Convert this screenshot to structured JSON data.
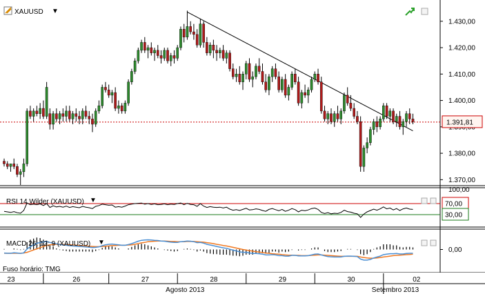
{
  "chart_data": {
    "type": "candlestick",
    "symbol": "XAUUSD",
    "dropdown_glyph": "▼",
    "colors": {
      "up": "#2e8b2e",
      "down": "#b01a1a",
      "wick": "#000000",
      "trendline": "#000000",
      "price_line": "#cc0000",
      "rsi_line": "#000000",
      "rsi_high": "#cc0000",
      "rsi_low": "#1a7a1a",
      "macd_fast": "#4a8fd4",
      "macd_slow": "#f07820",
      "grid": "#cfcfcf"
    },
    "price_axis": {
      "min": 1368,
      "max": 1437,
      "ticks": [
        1370,
        1380,
        1390,
        1400,
        1410,
        1420,
        1430
      ],
      "tick_labels": [
        "1.370,00",
        "1.380,00",
        "1.390,00",
        "1.400,00",
        "1.410,00",
        "1.420,00",
        "1.430,00"
      ]
    },
    "last_price": 1391.81,
    "last_price_label": "1.391,81",
    "trendline": {
      "from_index": 56,
      "from_value": 1433.5,
      "to_index": 125,
      "to_value": 1388.5
    },
    "candles": [
      [
        1377,
        1378,
        1375,
        1376
      ],
      [
        1376,
        1377,
        1374,
        1375
      ],
      [
        1375,
        1376,
        1373,
        1376
      ],
      [
        1376,
        1378,
        1374,
        1375
      ],
      [
        1375,
        1376,
        1371,
        1372
      ],
      [
        1372,
        1374,
        1368,
        1373
      ],
      [
        1373,
        1378,
        1371,
        1376
      ],
      [
        1376,
        1397,
        1375,
        1396
      ],
      [
        1396,
        1398,
        1393,
        1394
      ],
      [
        1394,
        1397,
        1392,
        1396
      ],
      [
        1396,
        1398,
        1394,
        1395
      ],
      [
        1395,
        1399,
        1393,
        1397
      ],
      [
        1397,
        1400,
        1393,
        1394
      ],
      [
        1394,
        1407,
        1393,
        1405
      ],
      [
        1395,
        1397,
        1389,
        1391
      ],
      [
        1391,
        1396,
        1389,
        1395
      ],
      [
        1395,
        1397,
        1392,
        1393
      ],
      [
        1393,
        1396,
        1391,
        1395
      ],
      [
        1395,
        1397,
        1392,
        1394
      ],
      [
        1394,
        1398,
        1392,
        1396
      ],
      [
        1396,
        1398,
        1392,
        1393
      ],
      [
        1393,
        1396,
        1391,
        1395
      ],
      [
        1395,
        1397,
        1392,
        1394
      ],
      [
        1394,
        1396,
        1391,
        1393
      ],
      [
        1393,
        1397,
        1391,
        1396
      ],
      [
        1396,
        1398,
        1393,
        1394
      ],
      [
        1394,
        1396,
        1391,
        1393
      ],
      [
        1393,
        1395,
        1388,
        1391
      ],
      [
        1391,
        1397,
        1390,
        1396
      ],
      [
        1396,
        1400,
        1395,
        1398
      ],
      [
        1398,
        1406,
        1397,
        1405
      ],
      [
        1405,
        1407,
        1403,
        1404
      ],
      [
        1404,
        1406,
        1401,
        1402
      ],
      [
        1402,
        1404,
        1399,
        1403
      ],
      [
        1403,
        1405,
        1396,
        1397
      ],
      [
        1397,
        1400,
        1395,
        1398
      ],
      [
        1398,
        1399,
        1395,
        1396
      ],
      [
        1396,
        1400,
        1395,
        1399
      ],
      [
        1399,
        1408,
        1398,
        1407
      ],
      [
        1407,
        1412,
        1406,
        1411
      ],
      [
        1411,
        1416,
        1410,
        1415
      ],
      [
        1415,
        1420,
        1414,
        1419
      ],
      [
        1419,
        1423,
        1418,
        1422
      ],
      [
        1422,
        1424,
        1418,
        1419
      ],
      [
        1419,
        1421,
        1416,
        1420
      ],
      [
        1420,
        1422,
        1417,
        1418
      ],
      [
        1418,
        1420,
        1415,
        1419
      ],
      [
        1419,
        1421,
        1416,
        1417
      ],
      [
        1417,
        1419,
        1414,
        1416
      ],
      [
        1416,
        1420,
        1415,
        1419
      ],
      [
        1419,
        1420,
        1414,
        1415
      ],
      [
        1415,
        1418,
        1413,
        1417
      ],
      [
        1417,
        1419,
        1414,
        1416
      ],
      [
        1416,
        1421,
        1415,
        1420
      ],
      [
        1420,
        1428,
        1419,
        1427
      ],
      [
        1427,
        1429,
        1422,
        1424
      ],
      [
        1424,
        1434,
        1423,
        1428
      ],
      [
        1428,
        1430,
        1425,
        1426
      ],
      [
        1426,
        1429,
        1423,
        1425
      ],
      [
        1425,
        1427,
        1420,
        1421
      ],
      [
        1421,
        1431,
        1420,
        1429
      ],
      [
        1429,
        1430,
        1420,
        1422
      ],
      [
        1422,
        1424,
        1417,
        1418
      ],
      [
        1418,
        1422,
        1417,
        1421
      ],
      [
        1421,
        1423,
        1416,
        1419
      ],
      [
        1419,
        1421,
        1415,
        1418
      ],
      [
        1418,
        1420,
        1416,
        1419
      ],
      [
        1419,
        1421,
        1415,
        1416
      ],
      [
        1416,
        1419,
        1414,
        1418
      ],
      [
        1418,
        1419,
        1411,
        1412
      ],
      [
        1412,
        1414,
        1408,
        1409
      ],
      [
        1409,
        1412,
        1407,
        1410
      ],
      [
        1410,
        1413,
        1406,
        1407
      ],
      [
        1407,
        1411,
        1404,
        1410
      ],
      [
        1410,
        1415,
        1408,
        1414
      ],
      [
        1414,
        1416,
        1407,
        1408
      ],
      [
        1408,
        1411,
        1405,
        1409
      ],
      [
        1409,
        1414,
        1408,
        1413
      ],
      [
        1413,
        1416,
        1410,
        1411
      ],
      [
        1411,
        1414,
        1406,
        1407
      ],
      [
        1407,
        1410,
        1403,
        1404
      ],
      [
        1404,
        1410,
        1402,
        1409
      ],
      [
        1409,
        1413,
        1407,
        1412
      ],
      [
        1412,
        1414,
        1408,
        1409
      ],
      [
        1409,
        1411,
        1403,
        1404
      ],
      [
        1404,
        1409,
        1403,
        1408
      ],
      [
        1408,
        1410,
        1401,
        1402
      ],
      [
        1402,
        1406,
        1400,
        1405
      ],
      [
        1405,
        1411,
        1404,
        1410
      ],
      [
        1410,
        1412,
        1406,
        1407
      ],
      [
        1407,
        1409,
        1398,
        1399
      ],
      [
        1399,
        1404,
        1397,
        1403
      ],
      [
        1403,
        1406,
        1401,
        1402
      ],
      [
        1402,
        1405,
        1399,
        1404
      ],
      [
        1404,
        1409,
        1403,
        1408
      ],
      [
        1408,
        1411,
        1407,
        1410
      ],
      [
        1410,
        1412,
        1406,
        1407
      ],
      [
        1407,
        1409,
        1395,
        1396
      ],
      [
        1396,
        1398,
        1392,
        1393
      ],
      [
        1393,
        1396,
        1391,
        1395
      ],
      [
        1395,
        1397,
        1391,
        1392
      ],
      [
        1392,
        1396,
        1390,
        1395
      ],
      [
        1395,
        1398,
        1392,
        1393
      ],
      [
        1393,
        1397,
        1391,
        1396
      ],
      [
        1396,
        1403,
        1395,
        1402
      ],
      [
        1402,
        1405,
        1398,
        1399
      ],
      [
        1399,
        1402,
        1396,
        1397
      ],
      [
        1397,
        1399,
        1393,
        1394
      ],
      [
        1394,
        1396,
        1391,
        1392
      ],
      [
        1392,
        1394,
        1373,
        1375
      ],
      [
        1375,
        1383,
        1373,
        1382
      ],
      [
        1382,
        1386,
        1380,
        1384
      ],
      [
        1384,
        1390,
        1383,
        1389
      ],
      [
        1389,
        1393,
        1387,
        1392
      ],
      [
        1392,
        1394,
        1388,
        1390
      ],
      [
        1390,
        1394,
        1389,
        1393
      ],
      [
        1393,
        1399,
        1392,
        1398
      ],
      [
        1398,
        1399,
        1393,
        1394
      ],
      [
        1394,
        1397,
        1392,
        1396
      ],
      [
        1396,
        1397,
        1391,
        1392
      ],
      [
        1392,
        1395,
        1390,
        1394
      ],
      [
        1394,
        1396,
        1389,
        1390
      ],
      [
        1390,
        1393,
        1387,
        1392
      ],
      [
        1392,
        1396,
        1390,
        1395
      ],
      [
        1395,
        1397,
        1391,
        1393
      ],
      [
        1393,
        1395,
        1391,
        1392
      ]
    ],
    "rsi": {
      "label": "RSI 14 Wilder (XAUUSD)",
      "ylim": [
        0,
        100
      ],
      "levels": [
        70,
        30
      ],
      "level_labels": [
        "70,00",
        "30,00"
      ],
      "axis_label": "100,00",
      "values": [
        42,
        40,
        38,
        41,
        37,
        35,
        45,
        72,
        66,
        68,
        66,
        69,
        63,
        70,
        56,
        62,
        58,
        60,
        57,
        61,
        56,
        59,
        57,
        55,
        60,
        57,
        55,
        52,
        60,
        63,
        68,
        66,
        64,
        65,
        57,
        59,
        57,
        61,
        66,
        68,
        70,
        71,
        72,
        68,
        70,
        67,
        69,
        66,
        67,
        69,
        66,
        68,
        67,
        70,
        72,
        66,
        71,
        67,
        66,
        60,
        70,
        61,
        56,
        59,
        57,
        56,
        57,
        54,
        57,
        50,
        46,
        48,
        45,
        49,
        53,
        47,
        48,
        51,
        49,
        45,
        42,
        49,
        52,
        48,
        44,
        49,
        42,
        46,
        52,
        48,
        40,
        46,
        44,
        47,
        52,
        54,
        49,
        38,
        34,
        37,
        33,
        35,
        34,
        38,
        46,
        41,
        39,
        35,
        33,
        20,
        32,
        40,
        45,
        50,
        46,
        51,
        58,
        51,
        54,
        47,
        52,
        45,
        51,
        54,
        50,
        49
      ]
    },
    "macd": {
      "label": "MACD 26; 12; 9 (XAUUSD)",
      "axis_label": "0,00",
      "ylim": [
        -6,
        6
      ],
      "macd": [
        -1.5,
        -1.6,
        -1.6,
        -1.4,
        -1.5,
        -1.7,
        -1.4,
        0.2,
        1.2,
        1.9,
        2.6,
        3.0,
        3.2,
        3.4,
        3.0,
        2.7,
        2.4,
        2.1,
        1.9,
        1.8,
        1.6,
        1.5,
        1.4,
        1.3,
        1.2,
        1.1,
        1.0,
        0.8,
        0.9,
        1.1,
        1.6,
        2.0,
        2.2,
        2.3,
        2.1,
        2.0,
        1.8,
        1.8,
        2.1,
        2.5,
        3.0,
        3.5,
        3.9,
        4.0,
        4.1,
        4.0,
        3.9,
        3.8,
        3.6,
        3.5,
        3.3,
        3.1,
        3.0,
        3.0,
        3.3,
        3.4,
        3.6,
        3.5,
        3.3,
        2.9,
        3.0,
        2.7,
        2.2,
        1.9,
        1.6,
        1.3,
        1.0,
        0.7,
        0.5,
        0.1,
        -0.3,
        -0.6,
        -1.0,
        -1.2,
        -1.2,
        -1.5,
        -1.7,
        -1.7,
        -1.8,
        -2.0,
        -2.3,
        -2.3,
        -2.2,
        -2.3,
        -2.6,
        -2.6,
        -2.8,
        -2.8,
        -2.5,
        -2.5,
        -2.7,
        -2.7,
        -2.7,
        -2.6,
        -2.3,
        -2.0,
        -1.9,
        -2.3,
        -2.7,
        -3.0,
        -3.1,
        -3.2,
        -3.2,
        -3.2,
        -2.9,
        -2.8,
        -2.8,
        -2.9,
        -3.0,
        -4.1,
        -4.5,
        -4.5,
        -4.2,
        -3.6,
        -3.2,
        -2.8,
        -2.2,
        -2.0,
        -1.8,
        -1.8,
        -1.7,
        -1.9,
        -1.9,
        -1.7,
        -1.6,
        -1.6
      ],
      "signal": [
        -1.6,
        -1.6,
        -1.6,
        -1.6,
        -1.6,
        -1.6,
        -1.5,
        -1.2,
        -0.7,
        -0.2,
        0.3,
        0.8,
        1.3,
        1.7,
        2.0,
        2.1,
        2.2,
        2.2,
        2.1,
        2.1,
        2.0,
        1.9,
        1.8,
        1.7,
        1.6,
        1.5,
        1.4,
        1.3,
        1.2,
        1.2,
        1.3,
        1.4,
        1.5,
        1.7,
        1.7,
        1.8,
        1.8,
        1.8,
        1.9,
        2.0,
        2.2,
        2.5,
        2.8,
        3.0,
        3.3,
        3.4,
        3.5,
        3.6,
        3.6,
        3.6,
        3.5,
        3.4,
        3.4,
        3.3,
        3.3,
        3.3,
        3.4,
        3.4,
        3.4,
        3.3,
        3.2,
        3.1,
        2.9,
        2.7,
        2.5,
        2.2,
        2.0,
        1.7,
        1.5,
        1.2,
        0.9,
        0.6,
        0.3,
        0.0,
        -0.2,
        -0.5,
        -0.7,
        -0.9,
        -1.1,
        -1.3,
        -1.5,
        -1.6,
        -1.8,
        -1.9,
        -2.0,
        -2.2,
        -2.3,
        -2.4,
        -2.4,
        -2.5,
        -2.5,
        -2.6,
        -2.6,
        -2.6,
        -2.5,
        -2.4,
        -2.3,
        -2.3,
        -2.4,
        -2.5,
        -2.6,
        -2.7,
        -2.8,
        -2.9,
        -2.9,
        -2.9,
        -2.9,
        -2.9,
        -2.9,
        -3.2,
        -3.4,
        -3.6,
        -3.7,
        -3.7,
        -3.6,
        -3.4,
        -3.2,
        -3.0,
        -2.8,
        -2.6,
        -2.5,
        -2.4,
        -2.3,
        -2.2,
        -2.1,
        -2.0
      ]
    },
    "x_axis": {
      "day_labels": [
        {
          "label": "23",
          "index": 2
        },
        {
          "label": "26",
          "index": 22
        },
        {
          "label": "27",
          "index": 43
        },
        {
          "label": "28",
          "index": 64
        },
        {
          "label": "29",
          "index": 85
        },
        {
          "label": "30",
          "index": 106
        },
        {
          "label": "02",
          "index": 126
        }
      ],
      "separators": [
        12,
        32,
        53,
        74,
        95,
        116
      ],
      "month_labels": [
        {
          "label": "Agosto 2013",
          "index": 57
        },
        {
          "label": "Setembro 2013",
          "index": 120
        }
      ],
      "month_separator": 116
    },
    "footer_text": "Fuso horário: TMG"
  }
}
